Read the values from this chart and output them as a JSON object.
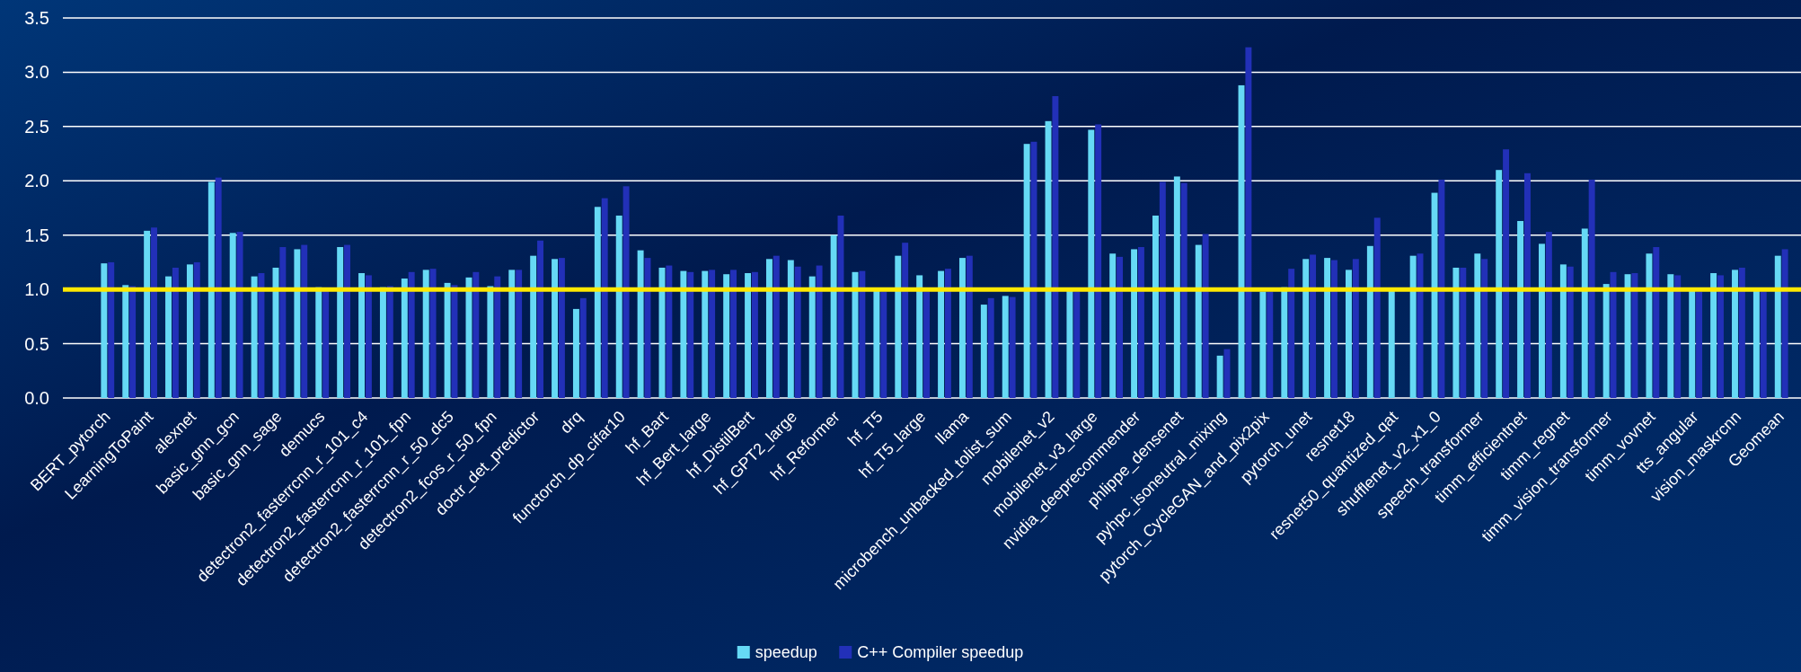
{
  "chart_data": {
    "type": "bar",
    "categories": [
      "BERT_pytorch",
      null,
      "LearningToPaint",
      null,
      "alexnet",
      null,
      "basic_gnn_gcn",
      null,
      "basic_gnn_sage",
      null,
      "demucs",
      null,
      "detectron2_fasterrcnn_r_101_c4",
      null,
      "detectron2_fasterrcnn_r_101_fpn",
      null,
      "detectron2_fasterrcnn_r_50_dc5",
      null,
      "detectron2_fcos_r_50_fpn",
      null,
      "doctr_det_predictor",
      null,
      "drq",
      null,
      "functorch_dp_cifar10",
      null,
      "hf_Bart",
      null,
      "hf_Bert_large",
      null,
      "hf_DistilBert",
      null,
      "hf_GPT2_large",
      null,
      "hf_Reformer",
      null,
      "hf_T5",
      null,
      "hf_T5_large",
      null,
      "llama",
      null,
      "microbench_unbacked_tolist_sum",
      null,
      "mobilenet_v2",
      null,
      "mobilenet_v3_large",
      null,
      "nvidia_deeprecommender",
      null,
      "phlippe_densenet",
      null,
      "pyhpc_isoneutral_mixing",
      null,
      "pytorch_CycleGAN_and_pix2pix",
      null,
      "pytorch_unet",
      null,
      "resnet18",
      null,
      "resnet50_quantized_qat",
      null,
      "shufflenet_v2_x1_0",
      null,
      "speech_transformer",
      null,
      "timm_efficientnet",
      null,
      "timm_regnet",
      null,
      "timm_vision_transformer",
      null,
      "timm_vovnet",
      null,
      "tts_angular",
      null,
      "vision_maskrcnn",
      null,
      "Geomean"
    ],
    "series": [
      {
        "name": "speedup",
        "color": "#66d9f5",
        "values": [
          1.24,
          1.04,
          1.54,
          1.12,
          1.23,
          1.99,
          1.52,
          1.12,
          1.2,
          1.37,
          1.02,
          1.39,
          1.15,
          1.02,
          1.1,
          1.18,
          1.06,
          1.11,
          1.03,
          1.18,
          1.31,
          1.28,
          0.82,
          1.76,
          1.68,
          1.36,
          1.2,
          1.17,
          1.17,
          1.14,
          1.15,
          1.28,
          1.27,
          1.12,
          1.5,
          1.16,
          0.99,
          1.31,
          1.13,
          1.17,
          1.29,
          0.86,
          0.94,
          2.34,
          2.55,
          0.99,
          2.47,
          1.33,
          1.37,
          1.68,
          2.04,
          1.41,
          0.39,
          2.88,
          0.98,
          1.02,
          1.28,
          1.29,
          1.18,
          1.4,
          0.99,
          1.31,
          1.89,
          1.2,
          1.33,
          2.1,
          1.63,
          1.42,
          1.23,
          1.56,
          1.05,
          1.14,
          1.33,
          1.14,
          0.99,
          1.15,
          1.18,
          0.99,
          1.31
        ]
      },
      {
        "name": "C++ Compiler speedup",
        "color": "#2230b8",
        "values": [
          1.25,
          1.03,
          1.57,
          1.2,
          1.25,
          2.03,
          1.53,
          1.15,
          1.39,
          1.41,
          1.0,
          1.41,
          1.13,
          1.03,
          1.16,
          1.19,
          1.04,
          1.16,
          1.12,
          1.18,
          1.45,
          1.29,
          0.92,
          1.84,
          1.95,
          1.29,
          1.22,
          1.16,
          1.18,
          1.18,
          1.16,
          1.31,
          1.21,
          1.22,
          1.68,
          1.17,
          0.98,
          1.43,
          0.98,
          1.19,
          1.31,
          0.92,
          0.93,
          2.36,
          2.78,
          0.98,
          2.52,
          1.3,
          1.39,
          1.99,
          1.98,
          1.51,
          0.45,
          3.23,
          0.98,
          1.19,
          1.32,
          1.27,
          1.28,
          1.66,
          null,
          1.33,
          2.01,
          1.2,
          1.28,
          2.29,
          2.07,
          1.53,
          1.21,
          2.01,
          1.16,
          1.15,
          1.39,
          1.13,
          0.98,
          1.13,
          1.2,
          0.98,
          1.37
        ]
      }
    ],
    "ylim": [
      0,
      3.5
    ],
    "yticks": [
      {
        "value": 0,
        "label": "0.0"
      },
      {
        "value": 0.5,
        "label": "0.5"
      },
      {
        "value": 1,
        "label": "1.0"
      },
      {
        "value": 1.5,
        "label": "1.5"
      },
      {
        "value": 2,
        "label": "2.0"
      },
      {
        "value": 2.5,
        "label": "2.5"
      },
      {
        "value": 3,
        "label": "3.0"
      },
      {
        "value": 3.5,
        "label": "3.5"
      }
    ],
    "grid": "y",
    "legend": "bottom",
    "ref_lines": [
      {
        "axis": "y",
        "value": 1,
        "color": "#ffe800"
      }
    ]
  }
}
